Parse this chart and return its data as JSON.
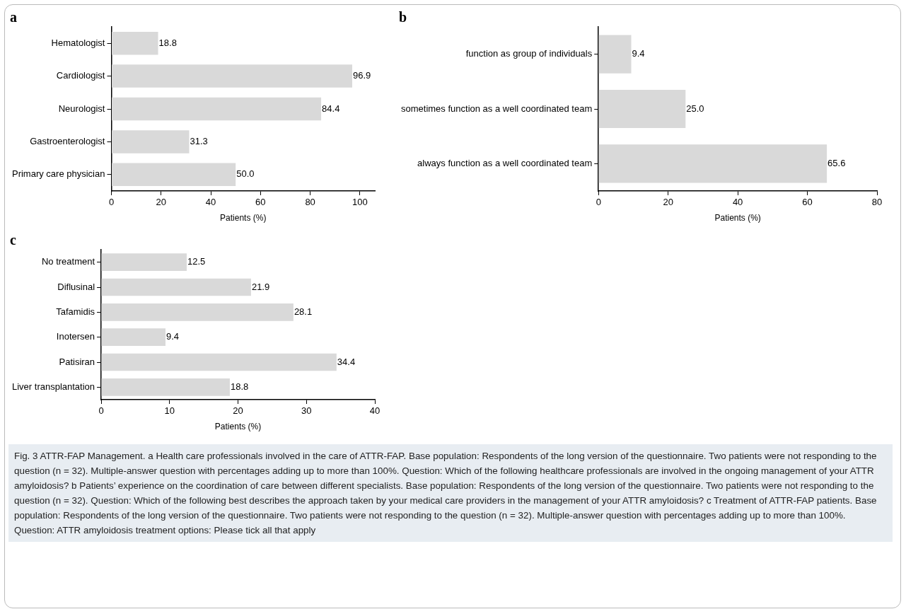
{
  "chart_data": [
    {
      "type": "bar",
      "orientation": "horizontal",
      "title": "a",
      "categories": [
        "Hematologist",
        "Cardiologist",
        "Neurologist",
        "Gastroenterologist",
        "Primary care physician"
      ],
      "values": [
        18.8,
        96.9,
        84.4,
        31.3,
        50.0
      ],
      "value_labels": [
        "18.8",
        "96.9",
        "84.4",
        "31.3",
        "50.0"
      ],
      "color": "#d9d9d9",
      "xlabel": "Patients (%)",
      "xlim": [
        0,
        106
      ],
      "xticks": [
        0,
        20,
        40,
        60,
        80,
        100
      ],
      "grid": false,
      "legend": false,
      "annotations": [
        "Fig. 3 ATTR-FAP Management. a Health care professionals involved in the care of ATTR-FAP. Base population: Respondents of the long version of the questionnaire. Two patients were not responding to the question (n = 32). Multiple-answer question with percentages adding up to more than 100%. Question: Which of the following healthcare professionals are involved in the ongoing management of your ATTR amyloidosis? b Patients’ experience on the coordination of care between different specialists. Base population: Respondents of the long version of the questionnaire. Two patients were not responding to the question (n = 32). Question: Which of the following best describes the approach taken by your medical care providers in the management of your ATTR amyloidosis? c Treatment of ATTR-FAP patients. Base population: Respondents of the long version of the questionnaire. Two patients were not responding to the question (n = 32). Multiple-answer question with percentages adding up to more than 100%. Question: ATTR amyloidosis treatment options: Please tick all that apply"
      ]
    },
    {
      "type": "bar",
      "orientation": "horizontal",
      "title": "b",
      "categories": [
        "function as group of individuals",
        "sometimes function as a well coordinated team",
        "always function as a well coordinated team"
      ],
      "values": [
        9.4,
        25.0,
        65.6
      ],
      "value_labels": [
        "9.4",
        "25.0",
        "65.6"
      ],
      "color": "#d9d9d9",
      "xlabel": "Patients (%)",
      "xlim": [
        0,
        80
      ],
      "xticks": [
        0,
        20,
        40,
        60,
        80
      ],
      "grid": false,
      "legend": false
    },
    {
      "type": "bar",
      "orientation": "horizontal",
      "title": "c",
      "categories": [
        "No treatment",
        "Diflusinal",
        "Tafamidis",
        "Inotersen",
        "Patisiran",
        "Liver transplantation"
      ],
      "values": [
        12.5,
        21.9,
        28.1,
        9.4,
        34.4,
        18.8
      ],
      "value_labels": [
        "12.5",
        "21.9",
        "28.1",
        "9.4",
        "34.4",
        "18.8"
      ],
      "color": "#d9d9d9",
      "xlabel": "Patients (%)",
      "xlim": [
        0,
        40
      ],
      "xticks": [
        0,
        10,
        20,
        30,
        40
      ],
      "grid": false,
      "legend": false
    }
  ]
}
